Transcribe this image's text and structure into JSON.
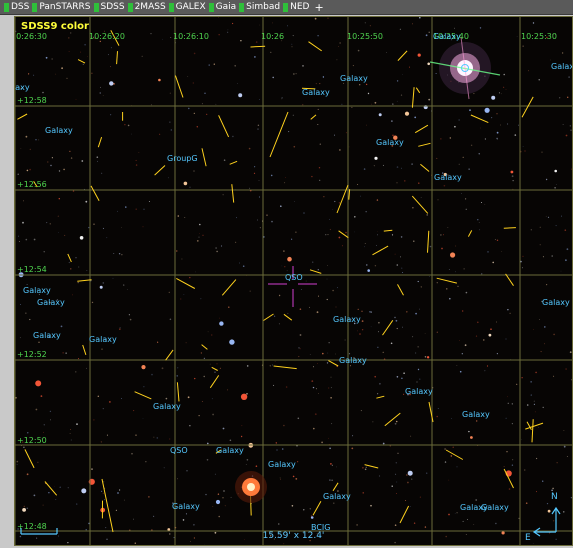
{
  "toolbar": {
    "items": [
      {
        "label": "DSS"
      },
      {
        "label": "PanSTARRS"
      },
      {
        "label": "SDSS"
      },
      {
        "label": "2MASS"
      },
      {
        "label": "GALEX"
      },
      {
        "label": "Gaia"
      },
      {
        "label": "Simbad"
      },
      {
        "label": "NED"
      }
    ],
    "add_label": "+"
  },
  "viewer": {
    "survey_label": "SDSS9 color",
    "fov_label": "15.59' x 12.4'",
    "compass": {
      "north": "N",
      "east": "E"
    },
    "ra_ticks": [
      "10:26:30",
      "10:26:20",
      "10:26:10",
      "10:26",
      "10:25:50",
      "10:25:40",
      "10:25:30"
    ],
    "dec_ticks": [
      "+12:58",
      "+12:56",
      "+12:54",
      "+12:52",
      "+12:50",
      "+12:48"
    ],
    "objects": [
      "Galaxy",
      "Galaxy",
      "Galaxy",
      "Galaxy",
      "laxy",
      "Galaxy",
      "Galaxy",
      "GroupG",
      "Galaxy",
      "Galaxy",
      "Galaxy",
      "Galaxy",
      "QSO",
      "Galaxy",
      "Galaxy",
      "Galaxy",
      "Galaxy",
      "Galaxy",
      "Galaxy",
      "Galaxy",
      "QSO",
      "Galaxy",
      "Galaxy",
      "Galaxy",
      "Galaxy",
      "Galaxy",
      "Galaxy",
      "BCIG"
    ],
    "colors": {
      "labels": "#55c8ff",
      "grid": "#6b6b3a",
      "ticks": "#4fd44f",
      "vectors": "#ffd21e",
      "target": "#d040d0"
    }
  }
}
